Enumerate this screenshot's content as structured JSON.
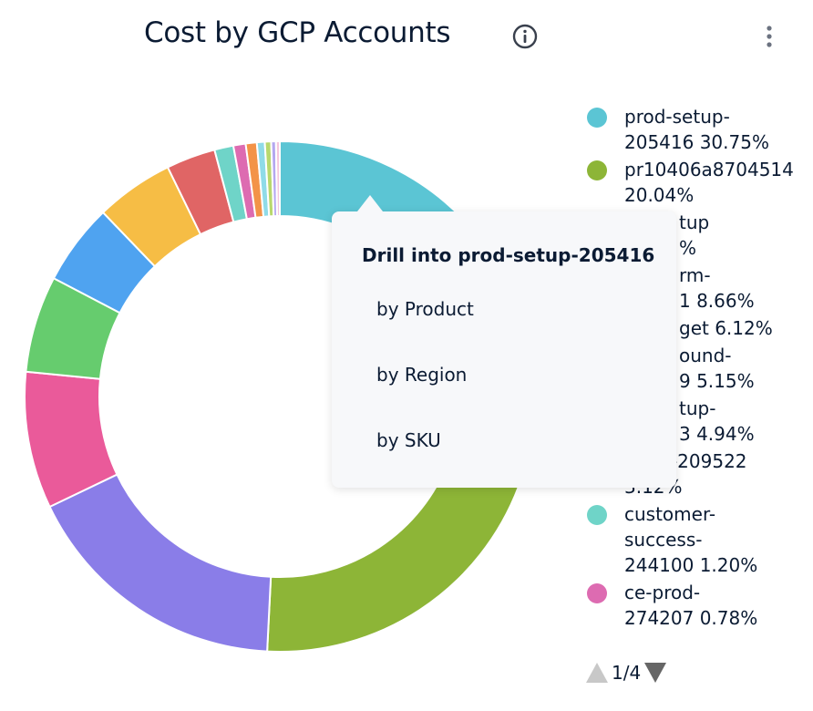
{
  "header": {
    "title": "Cost by GCP Accounts",
    "info_icon": "info-circle-icon",
    "menu_icon": "kebab-vertical-icon"
  },
  "chart_data": {
    "type": "pie",
    "variant": "donut",
    "title": "Cost by GCP Accounts",
    "start": "top, clockwise",
    "slices": [
      {
        "label": "prod-setup-205416",
        "value": 30.75,
        "color": "#5bc5d4"
      },
      {
        "label": "pr10406a8704514",
        "value": 20.04,
        "color": "#8db537"
      },
      {
        "label": "",
        "value": 17.1,
        "color": "#8a7de8"
      },
      {
        "label": "",
        "value": 8.66,
        "color": "#ea5a9a"
      },
      {
        "label": "",
        "value": 6.12,
        "color": "#66cc6e"
      },
      {
        "label": "",
        "value": 5.15,
        "color": "#4fa3f0"
      },
      {
        "label": "",
        "value": 4.94,
        "color": "#f6bd45"
      },
      {
        "label": "sales-209522",
        "value": 3.12,
        "color": "#e06565"
      },
      {
        "label": "customer-success-244100",
        "value": 1.2,
        "color": "#6fd4c8"
      },
      {
        "label": "ce-prod-274207",
        "value": 0.78,
        "color": "#dd6bb1"
      },
      {
        "label": "",
        "value": 0.7,
        "color": "#f39348"
      },
      {
        "label": "",
        "value": 0.5,
        "color": "#8fdbe8"
      },
      {
        "label": "",
        "value": 0.4,
        "color": "#b8d86e"
      },
      {
        "label": "",
        "value": 0.3,
        "color": "#b4a8f0"
      },
      {
        "label": "",
        "value": 0.24,
        "color": "#f5c6dc"
      }
    ],
    "legend_placement": "right"
  },
  "legend": {
    "items": [
      {
        "lines": [
          "prod-setup-",
          "205416 30.75%"
        ],
        "color": "#5bc5d4"
      },
      {
        "lines": [
          "pr10406a8704514",
          "20.04%"
        ],
        "color": "#8db537"
      },
      {
        "lines": [
          "tup",
          "%"
        ],
        "color": "#8a7de8",
        "hidden": true
      },
      {
        "lines": [
          "rm-",
          "1 8.66%"
        ],
        "color": "#ea5a9a",
        "hidden": true
      },
      {
        "lines": [
          "get 6.12%"
        ],
        "color": "#66cc6e",
        "hidden": true
      },
      {
        "lines": [
          "ound-",
          "9 5.15%"
        ],
        "color": "#4fa3f0",
        "hidden": true
      },
      {
        "lines": [
          "tup-",
          "3 4.94%"
        ],
        "color": "#f6bd45",
        "hidden": true
      },
      {
        "lines": [
          "sales-209522",
          "3.12%"
        ],
        "color": "#e06565"
      },
      {
        "lines": [
          "customer-",
          "success-",
          "244100 1.20%"
        ],
        "color": "#6fd4c8"
      },
      {
        "lines": [
          "ce-prod-",
          "274207 0.78%"
        ],
        "color": "#dd6bb1"
      }
    ],
    "pager": {
      "text": "1/4",
      "prev_icon": "triangle-up-icon",
      "next_icon": "triangle-down-icon"
    }
  },
  "tooltip": {
    "title": "Drill into prod-setup-205416",
    "items": [
      "by Product",
      "by Region",
      "by SKU"
    ]
  }
}
